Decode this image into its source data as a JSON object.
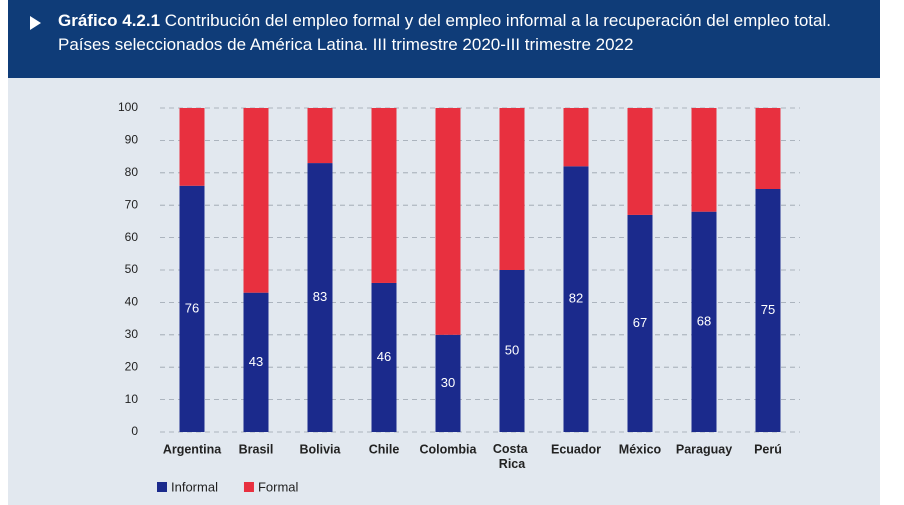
{
  "chart_data": {
    "type": "stacked_bar",
    "title_label": "Gráfico 4.2.1",
    "title": "Contribución del empleo formal y del empleo informal a la recuperación del empleo total. Países seleccionados de América Latina. III trimestre 2020-III trimestre 2022",
    "categories": [
      "Argentina",
      "Brasil",
      "Bolivia",
      "Chile",
      "Colombia",
      "Costa Rica",
      "Ecuador",
      "México",
      "Paraguay",
      "Perú"
    ],
    "series": [
      {
        "name": "Informal",
        "color": "#1b2a8c",
        "values": [
          76,
          43,
          83,
          46,
          30,
          50,
          82,
          67,
          68,
          75
        ]
      },
      {
        "name": "Formal",
        "color": "#e8303f",
        "values": [
          24,
          57,
          17,
          54,
          70,
          50,
          18,
          33,
          32,
          25
        ]
      }
    ],
    "ylim": [
      0,
      100
    ],
    "yticks": [
      0,
      10,
      20,
      30,
      40,
      50,
      60,
      70,
      80,
      90,
      100
    ],
    "grid": true,
    "data_labels_series": 0
  }
}
